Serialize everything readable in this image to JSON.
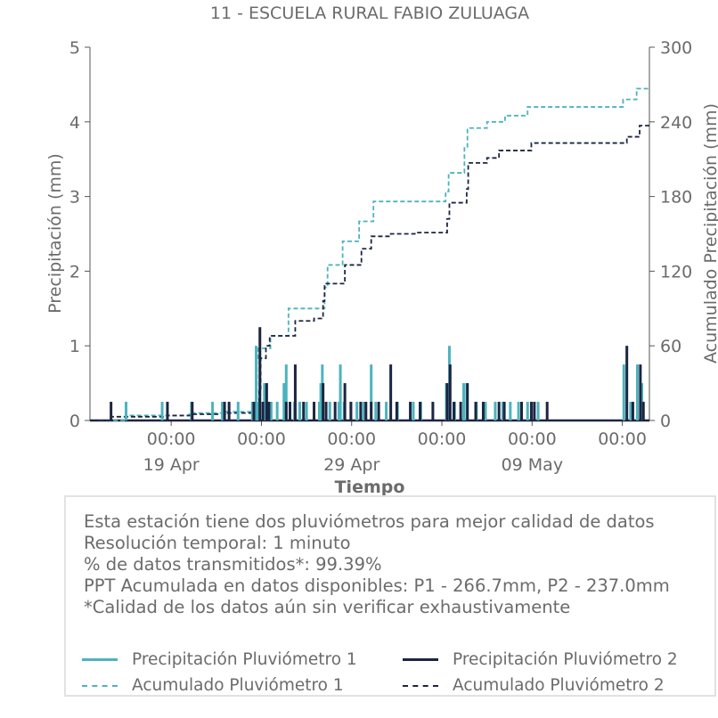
{
  "chart_data": {
    "type": "bar+line",
    "title": "11 - ESCUELA RURAL FABIO ZULUAGA",
    "xlabel": "Tiempo",
    "ylabel_left": "Precipitación (mm)",
    "ylabel_right": "Acumulado Precipitación (mm)",
    "ylim_left": [
      0,
      5
    ],
    "ylim_right": [
      0,
      300
    ],
    "yticks_left": [
      "0",
      "1",
      "2",
      "3",
      "4",
      "5"
    ],
    "yticks_right": [
      "0",
      "60",
      "120",
      "180",
      "240",
      "300"
    ],
    "xlim": [
      "2023-04-14T12:00",
      "2023-05-15T12:00"
    ],
    "xticks": [
      {
        "x": "2023-04-19T00:00",
        "time": "00:00",
        "date": "19 Apr"
      },
      {
        "x": "2023-04-24T00:00",
        "time": "00:00",
        "date": ""
      },
      {
        "x": "2023-04-29T00:00",
        "time": "00:00",
        "date": "29 Apr"
      },
      {
        "x": "2023-05-04T00:00",
        "time": "00:00",
        "date": ""
      },
      {
        "x": "2023-05-09T00:00",
        "time": "00:00",
        "date": "09 May"
      },
      {
        "x": "2023-05-14T00:00",
        "time": "00:00",
        "date": ""
      }
    ],
    "series": [
      {
        "name": "Precipitación Pluviómetro 1",
        "kind": "bar",
        "color": "#4db3bd",
        "points": [
          [
            "2023-04-16T12:00",
            0.25
          ],
          [
            "2023-04-18T12:00",
            0.25
          ],
          [
            "2023-04-20T03:00",
            0.25
          ],
          [
            "2023-04-21T07:00",
            0.25
          ],
          [
            "2023-04-21T20:00",
            0.25
          ],
          [
            "2023-04-22T17:00",
            0.25
          ],
          [
            "2023-04-23T12:00",
            0.25
          ],
          [
            "2023-04-23T17:00",
            1.0
          ],
          [
            "2023-04-23T19:00",
            0.25
          ],
          [
            "2023-04-24T04:00",
            0.5
          ],
          [
            "2023-04-24T13:00",
            0.25
          ],
          [
            "2023-04-24T21:00",
            0.25
          ],
          [
            "2023-04-25T06:00",
            0.5
          ],
          [
            "2023-04-25T09:00",
            0.75
          ],
          [
            "2023-04-25T20:00",
            0.25
          ],
          [
            "2023-04-26T03:00",
            0.25
          ],
          [
            "2023-04-26T12:00",
            0.25
          ],
          [
            "2023-04-27T05:00",
            0.25
          ],
          [
            "2023-04-27T07:00",
            0.5
          ],
          [
            "2023-04-27T09:00",
            0.75
          ],
          [
            "2023-04-27T19:00",
            0.25
          ],
          [
            "2023-04-28T07:00",
            0.25
          ],
          [
            "2023-04-28T09:00",
            0.75
          ],
          [
            "2023-04-28T14:00",
            0.25
          ],
          [
            "2023-04-28T23:00",
            0.25
          ],
          [
            "2023-04-29T07:00",
            0.25
          ],
          [
            "2023-04-29T16:00",
            0.25
          ],
          [
            "2023-04-30T02:00",
            0.75
          ],
          [
            "2023-04-30T08:00",
            0.25
          ],
          [
            "2023-04-30T22:00",
            0.25
          ],
          [
            "2023-05-01T13:00",
            0.25
          ],
          [
            "2023-05-02T10:00",
            0.25
          ],
          [
            "2023-05-02T20:00",
            0.25
          ],
          [
            "2023-05-04T06:00",
            0.5
          ],
          [
            "2023-05-04T10:00",
            1.0
          ],
          [
            "2023-05-04T17:00",
            0.25
          ],
          [
            "2023-05-05T05:00",
            0.5
          ],
          [
            "2023-05-05T09:00",
            0.5
          ],
          [
            "2023-05-05T22:00",
            0.25
          ],
          [
            "2023-05-06T10:00",
            0.25
          ],
          [
            "2023-05-06T23:00",
            0.25
          ],
          [
            "2023-05-07T09:00",
            0.25
          ],
          [
            "2023-05-07T19:00",
            0.25
          ],
          [
            "2023-05-08T06:00",
            0.25
          ],
          [
            "2023-05-08T18:00",
            0.25
          ],
          [
            "2023-05-09T08:00",
            0.25
          ],
          [
            "2023-05-14T02:00",
            0.75
          ],
          [
            "2023-05-14T11:00",
            0.25
          ],
          [
            "2023-05-14T20:00",
            0.75
          ],
          [
            "2023-05-15T02:00",
            0.5
          ]
        ]
      },
      {
        "name": "Precipitación Pluviómetro 2",
        "kind": "bar",
        "color": "#1c2541",
        "points": [
          [
            "2023-04-15T16:00",
            0.25
          ],
          [
            "2023-04-18T19:00",
            0.25
          ],
          [
            "2023-04-20T04:00",
            0.25
          ],
          [
            "2023-04-21T23:00",
            0.25
          ],
          [
            "2023-04-22T05:00",
            0.25
          ],
          [
            "2023-04-23T14:00",
            0.25
          ],
          [
            "2023-04-23T22:00",
            1.25
          ],
          [
            "2023-04-24T02:00",
            0.25
          ],
          [
            "2023-04-24T07:00",
            0.5
          ],
          [
            "2023-04-24T10:00",
            0.25
          ],
          [
            "2023-04-25T09:00",
            0.25
          ],
          [
            "2023-04-25T14:00",
            0.25
          ],
          [
            "2023-04-25T21:00",
            0.75
          ],
          [
            "2023-04-26T08:00",
            0.25
          ],
          [
            "2023-04-26T22:00",
            0.25
          ],
          [
            "2023-04-27T10:00",
            0.5
          ],
          [
            "2023-04-27T14:00",
            0.25
          ],
          [
            "2023-04-28T02:00",
            0.25
          ],
          [
            "2023-04-28T15:00",
            0.5
          ],
          [
            "2023-04-28T23:00",
            0.25
          ],
          [
            "2023-04-29T12:00",
            0.25
          ],
          [
            "2023-04-29T19:00",
            0.25
          ],
          [
            "2023-04-30T02:00",
            0.25
          ],
          [
            "2023-04-30T12:00",
            0.25
          ],
          [
            "2023-05-01T04:00",
            0.75
          ],
          [
            "2023-05-01T12:00",
            0.25
          ],
          [
            "2023-05-02T06:00",
            0.25
          ],
          [
            "2023-05-02T19:00",
            0.25
          ],
          [
            "2023-05-03T12:00",
            0.25
          ],
          [
            "2023-05-04T07:00",
            0.5
          ],
          [
            "2023-05-04T11:00",
            0.75
          ],
          [
            "2023-05-04T16:00",
            0.25
          ],
          [
            "2023-05-05T01:00",
            0.25
          ],
          [
            "2023-05-05T10:00",
            0.5
          ],
          [
            "2023-05-05T21:00",
            0.25
          ],
          [
            "2023-05-06T07:00",
            0.25
          ],
          [
            "2023-05-07T04:00",
            0.25
          ],
          [
            "2023-05-07T11:00",
            0.25
          ],
          [
            "2023-05-08T10:00",
            0.25
          ],
          [
            "2023-05-08T23:00",
            0.25
          ],
          [
            "2023-05-09T03:00",
            0.25
          ],
          [
            "2023-05-09T20:00",
            0.25
          ],
          [
            "2023-05-14T06:00",
            1.0
          ],
          [
            "2023-05-14T14:00",
            0.25
          ],
          [
            "2023-05-15T00:00",
            0.75
          ],
          [
            "2023-05-15T04:00",
            0.25
          ]
        ]
      },
      {
        "name": "Acumulado Pluviómetro 1",
        "kind": "step-dashed",
        "color": "#4db3bd",
        "points": [
          [
            "2023-04-15T00:00",
            0
          ],
          [
            "2023-04-16T12:00",
            4
          ],
          [
            "2023-04-20T00:00",
            6
          ],
          [
            "2023-04-22T00:00",
            7
          ],
          [
            "2023-04-23T12:00",
            10
          ],
          [
            "2023-04-23T18:00",
            48
          ],
          [
            "2023-04-23T20:00",
            58
          ],
          [
            "2023-04-24T12:00",
            68
          ],
          [
            "2023-04-25T12:00",
            90
          ],
          [
            "2023-04-27T12:00",
            107
          ],
          [
            "2023-04-27T16:00",
            125
          ],
          [
            "2023-04-28T12:00",
            144
          ],
          [
            "2023-04-29T10:00",
            160
          ],
          [
            "2023-04-30T05:00",
            176
          ],
          [
            "2023-05-04T05:00",
            184
          ],
          [
            "2023-05-04T09:00",
            199
          ],
          [
            "2023-05-05T06:00",
            219
          ],
          [
            "2023-05-05T10:00",
            235
          ],
          [
            "2023-05-06T12:00",
            240
          ],
          [
            "2023-05-07T12:00",
            245
          ],
          [
            "2023-05-08T18:00",
            252
          ],
          [
            "2023-05-14T01:00",
            258
          ],
          [
            "2023-05-14T19:00",
            266.7
          ]
        ]
      },
      {
        "name": "Acumulado Pluviómetro 2",
        "kind": "step-dashed",
        "color": "#1c2541",
        "points": [
          [
            "2023-04-15T00:00",
            0
          ],
          [
            "2023-04-15T16:00",
            3
          ],
          [
            "2023-04-18T19:00",
            4
          ],
          [
            "2023-04-20T04:00",
            5
          ],
          [
            "2023-04-22T00:00",
            6
          ],
          [
            "2023-04-23T14:00",
            8
          ],
          [
            "2023-04-23T21:00",
            24
          ],
          [
            "2023-04-23T23:00",
            50
          ],
          [
            "2023-04-24T06:00",
            60
          ],
          [
            "2023-04-24T11:00",
            68
          ],
          [
            "2023-04-25T21:00",
            80
          ],
          [
            "2023-04-26T22:00",
            82
          ],
          [
            "2023-04-27T10:00",
            96
          ],
          [
            "2023-04-27T12:00",
            110
          ],
          [
            "2023-04-28T15:00",
            125
          ],
          [
            "2023-04-29T13:00",
            138
          ],
          [
            "2023-04-30T02:00",
            148
          ],
          [
            "2023-05-01T04:00",
            150
          ],
          [
            "2023-05-02T12:00",
            151
          ],
          [
            "2023-05-04T07:00",
            162
          ],
          [
            "2023-05-04T10:00",
            175
          ],
          [
            "2023-05-05T09:00",
            186
          ],
          [
            "2023-05-05T11:00",
            207
          ],
          [
            "2023-05-06T12:00",
            211
          ],
          [
            "2023-05-07T04:00",
            217
          ],
          [
            "2023-05-08T23:00",
            223
          ],
          [
            "2023-05-14T06:00",
            228
          ],
          [
            "2023-05-14T23:00",
            237
          ]
        ]
      }
    ]
  },
  "info": {
    "lines": [
      "Esta estación tiene dos pluviómetros para mejor calidad de datos",
      "Resolución temporal: 1 minuto",
      "% de datos transmitidos*: 99.39%",
      "PPT Acumulada en datos disponibles: P1 - 266.7mm, P2 - 237.0mm",
      "*Calidad de los datos aún sin verificar exhaustivamente"
    ]
  },
  "legend": {
    "items": [
      {
        "label": "Precipitación Pluviómetro 1",
        "color": "#4db3bd",
        "style": "solid"
      },
      {
        "label": "Precipitación Pluviómetro 2",
        "color": "#1c2541",
        "style": "solid"
      },
      {
        "label": "Acumulado Pluviómetro 1",
        "color": "#4db3bd",
        "style": "dashed"
      },
      {
        "label": "Acumulado Pluviómetro 2",
        "color": "#1c2541",
        "style": "dashed"
      }
    ]
  }
}
